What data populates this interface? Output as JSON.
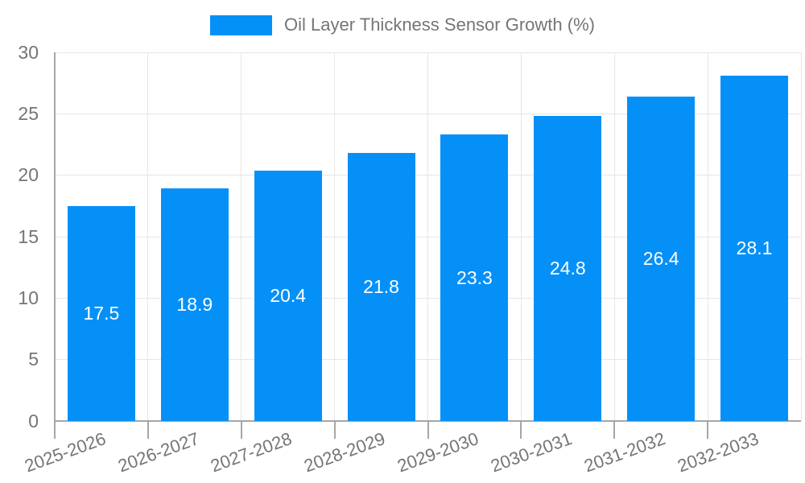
{
  "chart_data": {
    "type": "bar",
    "title": "Oil Layer Thickness Sensor Growth (%)",
    "categories": [
      "2025-2026",
      "2026-2027",
      "2027-2028",
      "2028-2029",
      "2029-2030",
      "2030-2031",
      "2031-2032",
      "2032-2033"
    ],
    "values": [
      17.5,
      18.9,
      20.4,
      21.8,
      23.3,
      24.8,
      26.4,
      28.1
    ],
    "xlabel": "",
    "ylabel": "",
    "ylim": [
      0,
      30
    ],
    "yticks": [
      0,
      5,
      10,
      15,
      20,
      25,
      30
    ],
    "grid": true,
    "legend_position": "top",
    "value_labels": [
      "17.5",
      "18.9",
      "20.4",
      "21.8",
      "23.3",
      "24.8",
      "26.4",
      "28.1"
    ]
  },
  "legend": {
    "label": "Oil Layer Thickness Sensor Growth (%)"
  },
  "colors": {
    "bar": "#0590f8",
    "grid": "#e6e6e6",
    "axis": "#a6a6a6",
    "tick_text": "#757575",
    "value_text": "#ffffff",
    "background": "#ffffff"
  }
}
